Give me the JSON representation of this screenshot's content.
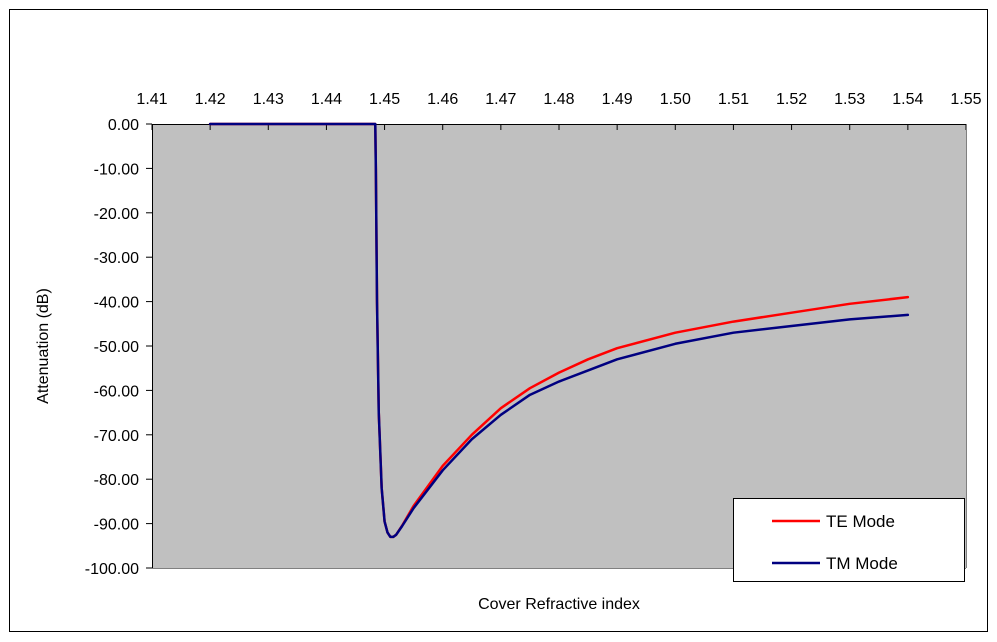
{
  "chart_data": {
    "type": "line",
    "title": "",
    "xlabel": "Cover Refractive index",
    "ylabel": "Attenuation (dB)",
    "xlim": [
      1.41,
      1.55
    ],
    "ylim": [
      -100,
      0
    ],
    "x_ticks": [
      "1.41",
      "1.42",
      "1.43",
      "1.44",
      "1.45",
      "1.46",
      "1.47",
      "1.48",
      "1.49",
      "1.50",
      "1.51",
      "1.52",
      "1.53",
      "1.54",
      "1.55"
    ],
    "y_ticks": [
      "0.00",
      "-10.00",
      "-20.00",
      "-30.00",
      "-40.00",
      "-50.00",
      "-60.00",
      "-70.00",
      "-80.00",
      "-90.00",
      "-100.00"
    ],
    "x_axis_position": "top",
    "grid": false,
    "plot_background": "#c0c0c0",
    "legend_position": "bottom-right",
    "series": [
      {
        "name": "TE Mode",
        "color": "#ff0000",
        "x": [
          1.42,
          1.4484,
          1.4485,
          1.4487,
          1.449,
          1.4495,
          1.45,
          1.4505,
          1.451,
          1.4515,
          1.452,
          1.453,
          1.455,
          1.46,
          1.465,
          1.47,
          1.475,
          1.48,
          1.485,
          1.49,
          1.5,
          1.51,
          1.52,
          1.53,
          1.54
        ],
        "y": [
          0,
          0,
          -10,
          -40,
          -65,
          -82,
          -89.5,
          -92,
          -93,
          -93,
          -92.5,
          -90.5,
          -86,
          -77,
          -70,
          -64,
          -59.5,
          -56,
          -53,
          -50.5,
          -47,
          -44.5,
          -42.5,
          -40.5,
          -39
        ]
      },
      {
        "name": "TM Mode",
        "color": "#000080",
        "x": [
          1.42,
          1.4484,
          1.4485,
          1.4487,
          1.449,
          1.4495,
          1.45,
          1.4505,
          1.451,
          1.4515,
          1.452,
          1.453,
          1.455,
          1.46,
          1.465,
          1.47,
          1.475,
          1.48,
          1.485,
          1.49,
          1.5,
          1.51,
          1.52,
          1.53,
          1.54
        ],
        "y": [
          0,
          0,
          -10,
          -40,
          -65,
          -82,
          -89.5,
          -92,
          -93,
          -93,
          -92.5,
          -90.6,
          -86.5,
          -78,
          -71,
          -65.5,
          -61,
          -58,
          -55.5,
          -53,
          -49.5,
          -47,
          -45.5,
          -44,
          -43
        ]
      }
    ]
  }
}
